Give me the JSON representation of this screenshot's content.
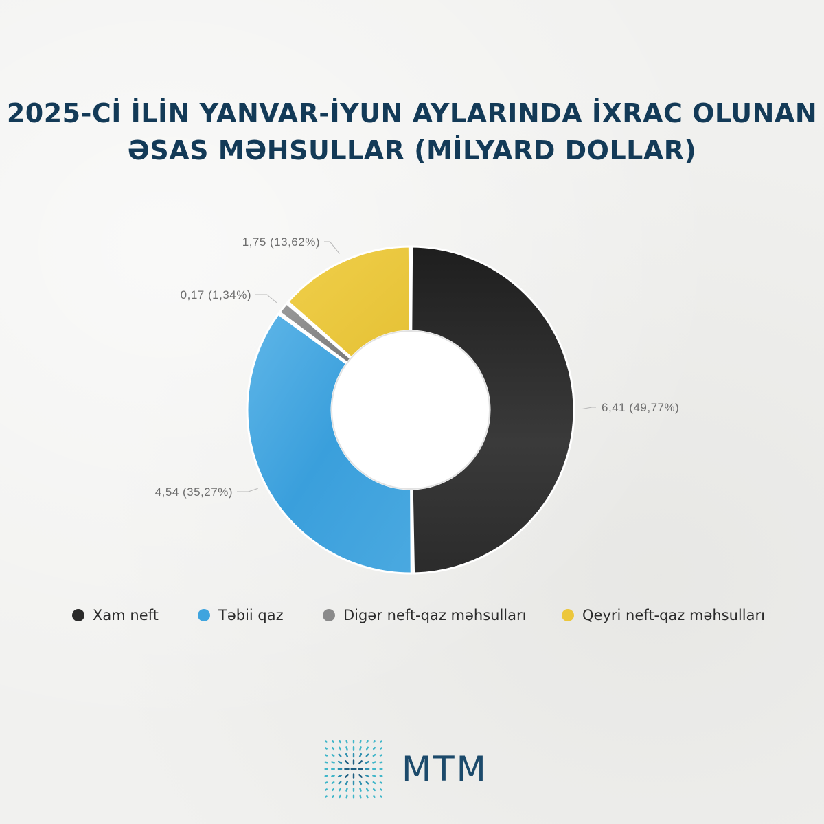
{
  "title_lines": [
    "2025-Cİ İLİN YANVAR-İYUN AYLARINDA İXRAC OLUNAN",
    "ƏSAS MƏHSULLAR (MİLYARD DOLLAR)"
  ],
  "chart_data": {
    "type": "pie",
    "variant": "donut",
    "title": "2025-Cİ İLİN YANVAR-İYUN AYLARINDA İXRAC OLUNAN ƏSAS MƏHSULLAR (MİLYARD DOLLAR)",
    "unit": "milyard dollar",
    "slices": [
      {
        "name": "Xam neft",
        "value": 6.41,
        "percent": 49.77,
        "label": "6,41 (49,77%)",
        "color": "#2a2a2a"
      },
      {
        "name": "Təbii qaz",
        "value": 4.54,
        "percent": 35.27,
        "label": "4,54 (35,27%)",
        "color": "#3fa4de"
      },
      {
        "name": "Digər neft-qaz məhsulları",
        "value": 0.17,
        "percent": 1.34,
        "label": "0,17 (1,34%)",
        "color": "#8a8a8a"
      },
      {
        "name": "Qeyri neft-qaz məhsulları",
        "value": 1.75,
        "percent": 13.62,
        "label": "1,75 (13,62%)",
        "color": "#ecc73c"
      }
    ],
    "legend_position": "bottom"
  },
  "logo": {
    "text": "MTM",
    "icon": "mtm-star-grid-icon"
  }
}
